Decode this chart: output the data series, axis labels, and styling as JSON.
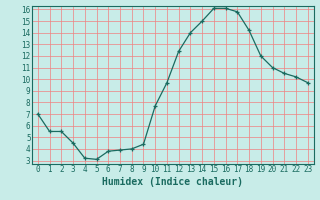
{
  "x": [
    0,
    1,
    2,
    3,
    4,
    5,
    6,
    7,
    8,
    9,
    10,
    11,
    12,
    13,
    14,
    15,
    16,
    17,
    18,
    19,
    20,
    21,
    22,
    23
  ],
  "y": [
    7.0,
    5.5,
    5.5,
    4.5,
    3.2,
    3.1,
    3.8,
    3.9,
    4.0,
    4.4,
    7.7,
    9.7,
    12.4,
    14.0,
    15.0,
    16.1,
    16.1,
    15.8,
    14.2,
    12.0,
    11.0,
    10.5,
    10.2,
    9.7
  ],
  "bg_color": "#c8ece8",
  "line_color": "#1a6b60",
  "marker_color": "#1a6b60",
  "grid_color": "#f08080",
  "xlabel": "Humidex (Indice chaleur)",
  "ylim_min": 3,
  "ylim_max": 16,
  "xlim_min": 0,
  "xlim_max": 23,
  "yticks": [
    3,
    4,
    5,
    6,
    7,
    8,
    9,
    10,
    11,
    12,
    13,
    14,
    15,
    16
  ],
  "xticks": [
    0,
    1,
    2,
    3,
    4,
    5,
    6,
    7,
    8,
    9,
    10,
    11,
    12,
    13,
    14,
    15,
    16,
    17,
    18,
    19,
    20,
    21,
    22,
    23
  ],
  "tick_fontsize": 5.5,
  "xlabel_fontsize": 7.0,
  "font_family": "monospace"
}
